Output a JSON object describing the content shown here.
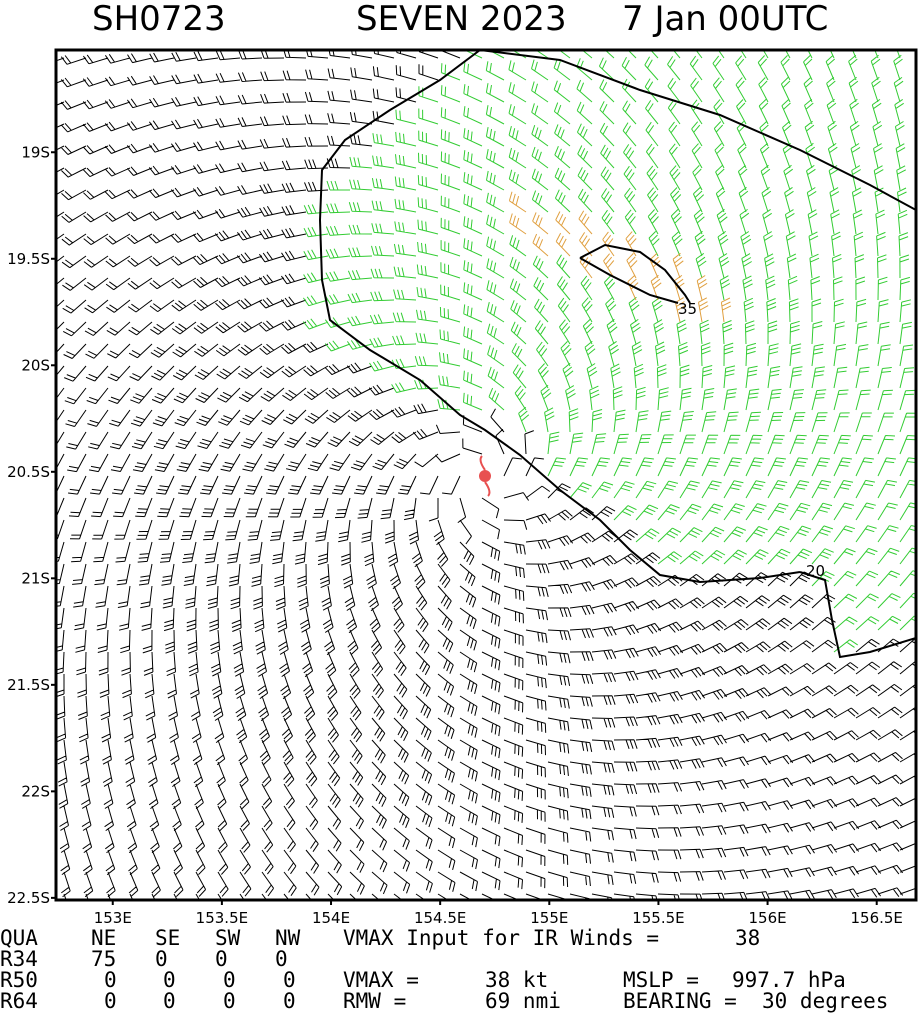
{
  "map": {
    "title": {
      "storm_id": "SH0723",
      "name": "SEVEN 2023",
      "time": "7 Jan 00UTC"
    },
    "xlim": [
      152.74,
      156.68
    ],
    "ylim": [
      -22.51,
      -18.52
    ],
    "xticks": [
      {
        "value": 153,
        "label": "153E"
      },
      {
        "value": 153.5,
        "label": "153.5E"
      },
      {
        "value": 154,
        "label": "154E"
      },
      {
        "value": 154.5,
        "label": "154.5E"
      },
      {
        "value": 155,
        "label": "155E"
      },
      {
        "value": 155.5,
        "label": "155.5E"
      },
      {
        "value": 156,
        "label": "156E"
      },
      {
        "value": 156.5,
        "label": "156.5E"
      }
    ],
    "yticks": [
      {
        "value": -19,
        "label": "19S"
      },
      {
        "value": -19.5,
        "label": "19.5S"
      },
      {
        "value": -20,
        "label": "20S"
      },
      {
        "value": -20.5,
        "label": "20.5S"
      },
      {
        "value": -21,
        "label": "21S"
      },
      {
        "value": -21.5,
        "label": "21.5S"
      },
      {
        "value": -22,
        "label": "22S"
      },
      {
        "value": -22.5,
        "label": "22.5S"
      }
    ],
    "contour_labels": [
      35,
      20
    ],
    "table": {
      "rows": [
        [
          "QUA",
          "NE",
          "SE",
          "SW",
          "NW",
          "VMAX Input for IR Winds =",
          38
        ],
        [
          "R34",
          75,
          0,
          0,
          0
        ],
        [
          "R50",
          0,
          0,
          0,
          0,
          "VMAX =",
          "38 kt",
          "MSLP =",
          "997.7 hPa"
        ],
        [
          "R64",
          0,
          0,
          0,
          0,
          "RMW =",
          "69 nmi",
          "BEARING =",
          "30 degrees"
        ]
      ]
    }
  }
}
